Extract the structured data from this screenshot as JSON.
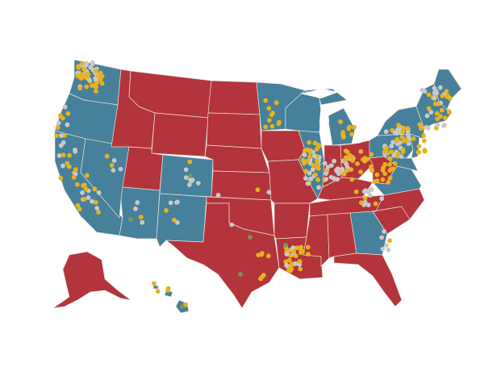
{
  "map": {
    "colors": {
      "red_states": "#b3343a",
      "blue_states": "#46809a",
      "lake": "#ffffff",
      "dot_gold": "#e6b21f",
      "dot_gray": "#c9c9c9",
      "dot_green": "#7a9a52"
    },
    "categories": [
      "red_states",
      "blue_states",
      "dot_gold",
      "dot_gray",
      "dot_green"
    ]
  }
}
